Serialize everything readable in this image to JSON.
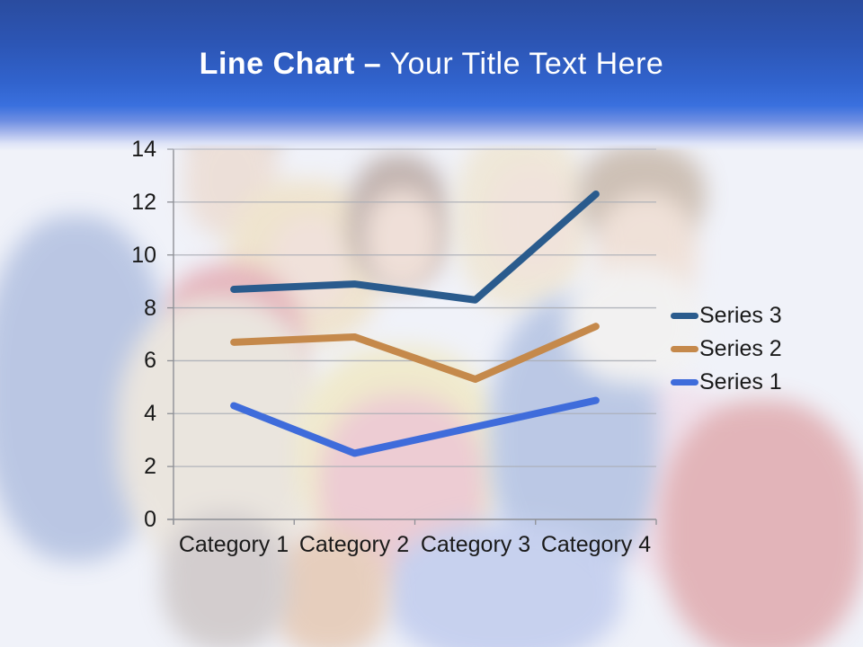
{
  "slide_title": {
    "bold_part": "Line Chart –",
    "regular_part": " Your Title Text Here"
  },
  "chart_data": {
    "type": "line",
    "title": "",
    "categories": [
      "Category 1",
      "Category 2",
      "Category 3",
      "Category 4"
    ],
    "series": [
      {
        "name": "Series 3",
        "color": "#2A5B8D",
        "values": [
          8.7,
          8.9,
          8.3,
          12.3
        ]
      },
      {
        "name": "Series 2",
        "color": "#C5894B",
        "values": [
          6.7,
          6.9,
          5.3,
          7.3
        ]
      },
      {
        "name": "Series 1",
        "color": "#3F6CDB",
        "values": [
          4.3,
          2.5,
          3.5,
          4.5
        ]
      }
    ],
    "ylim": [
      0,
      14
    ],
    "y_ticks": [
      14,
      12,
      10,
      8,
      6,
      4,
      2,
      0
    ],
    "y_tick_labels": [
      "14",
      "12",
      "10",
      "8",
      "6",
      "4",
      "2",
      "0"
    ],
    "grid": "horizontal",
    "legend_position": "right",
    "legend": [
      {
        "label": "Series 3"
      },
      {
        "label": "Series 2"
      },
      {
        "label": "Series 1"
      }
    ]
  }
}
